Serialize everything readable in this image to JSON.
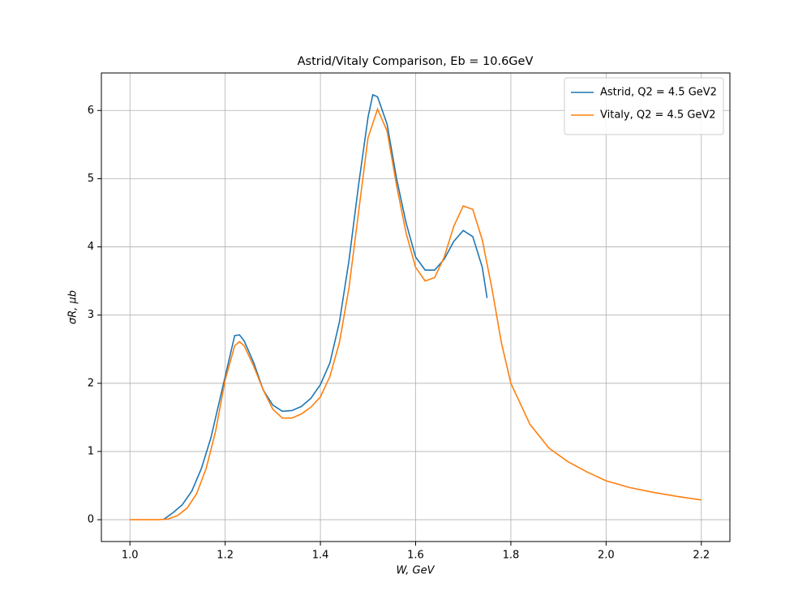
{
  "chart_data": {
    "type": "line",
    "title": "Astrid/Vitaly Comparison, Eb = 10.6GeV",
    "xlabel": "W, GeV",
    "ylabel": "σR, μb",
    "xlim": [
      0.94,
      2.26
    ],
    "ylim": [
      -0.32,
      6.55
    ],
    "xticks": [
      {
        "value": 1.0,
        "label": "1.0"
      },
      {
        "value": 1.2,
        "label": "1.2"
      },
      {
        "value": 1.4,
        "label": "1.4"
      },
      {
        "value": 1.6,
        "label": "1.6"
      },
      {
        "value": 1.8,
        "label": "1.8"
      },
      {
        "value": 2.0,
        "label": "2.0"
      },
      {
        "value": 2.2,
        "label": "2.2"
      }
    ],
    "yticks": [
      0,
      1,
      2,
      3,
      4,
      5,
      6
    ],
    "grid": true,
    "legend": "upper right",
    "series": [
      {
        "name": "Astrid, Q2 = 4.5 GeV2",
        "color": "#1f77b4",
        "x": [
          1.07,
          1.09,
          1.11,
          1.13,
          1.15,
          1.17,
          1.19,
          1.21,
          1.22,
          1.23,
          1.24,
          1.26,
          1.28,
          1.3,
          1.32,
          1.34,
          1.36,
          1.38,
          1.4,
          1.42,
          1.44,
          1.46,
          1.48,
          1.5,
          1.51,
          1.52,
          1.54,
          1.56,
          1.58,
          1.6,
          1.62,
          1.64,
          1.66,
          1.68,
          1.7,
          1.72,
          1.74,
          1.75
        ],
        "values": [
          0,
          0.1,
          0.22,
          0.42,
          0.75,
          1.2,
          1.8,
          2.4,
          2.7,
          2.71,
          2.62,
          2.3,
          1.9,
          1.68,
          1.59,
          1.6,
          1.66,
          1.78,
          1.98,
          2.3,
          2.9,
          3.8,
          4.9,
          5.9,
          6.23,
          6.2,
          5.8,
          5.0,
          4.35,
          3.85,
          3.66,
          3.66,
          3.82,
          4.08,
          4.24,
          4.15,
          3.7,
          3.25
        ]
      },
      {
        "name": "Vitaly, Q2 = 4.5 GeV2",
        "color": "#ff7f0e",
        "x": [
          1.0,
          1.02,
          1.04,
          1.06,
          1.08,
          1.1,
          1.12,
          1.14,
          1.16,
          1.18,
          1.2,
          1.22,
          1.23,
          1.24,
          1.26,
          1.28,
          1.3,
          1.32,
          1.34,
          1.36,
          1.38,
          1.4,
          1.42,
          1.44,
          1.46,
          1.48,
          1.5,
          1.52,
          1.54,
          1.56,
          1.58,
          1.6,
          1.62,
          1.64,
          1.66,
          1.68,
          1.7,
          1.72,
          1.74,
          1.76,
          1.78,
          1.8,
          1.84,
          1.88,
          1.92,
          1.96,
          2.0,
          2.05,
          2.1,
          2.15,
          2.2
        ],
        "values": [
          0,
          0,
          0,
          0,
          0.01,
          0.06,
          0.17,
          0.38,
          0.75,
          1.3,
          2.05,
          2.55,
          2.61,
          2.55,
          2.25,
          1.9,
          1.62,
          1.49,
          1.49,
          1.55,
          1.65,
          1.8,
          2.1,
          2.6,
          3.4,
          4.5,
          5.6,
          6.02,
          5.7,
          4.9,
          4.2,
          3.7,
          3.5,
          3.55,
          3.85,
          4.3,
          4.6,
          4.55,
          4.1,
          3.4,
          2.6,
          2.0,
          1.4,
          1.05,
          0.85,
          0.7,
          0.57,
          0.47,
          0.4,
          0.34,
          0.29
        ]
      }
    ]
  }
}
